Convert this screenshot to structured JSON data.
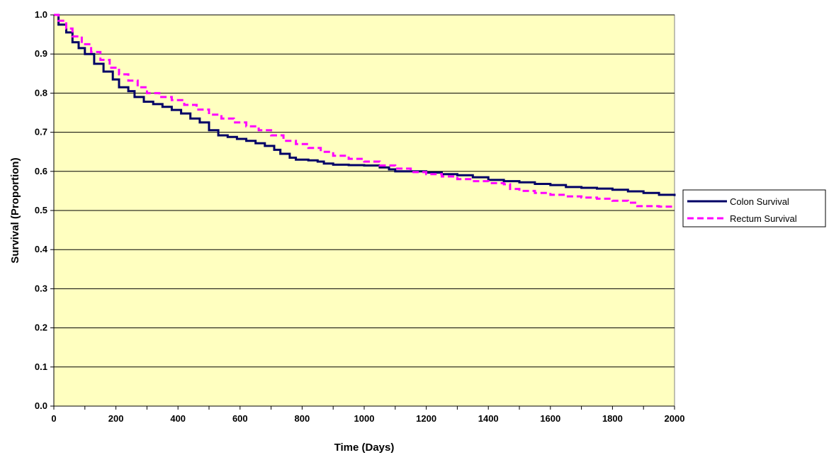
{
  "chart_data": {
    "type": "line",
    "title": "",
    "xlabel": "Time (Days)",
    "ylabel": "Survival (Proportion)",
    "xlim": [
      0,
      2000
    ],
    "ylim": [
      0,
      1
    ],
    "x_ticks": [
      0,
      200,
      400,
      600,
      800,
      1000,
      1200,
      1400,
      1600,
      1800,
      2000
    ],
    "y_ticks": [
      "0.0",
      "0.1",
      "0.2",
      "0.3",
      "0.4",
      "0.5",
      "0.6",
      "0.7",
      "0.8",
      "0.9",
      "1.0"
    ],
    "grid": "horizontal",
    "legend_position": "right",
    "plot_background": "#FFFFC0",
    "series": [
      {
        "name": "Colon Survival",
        "color": "#000066",
        "style": "solid",
        "x": [
          0,
          15,
          40,
          60,
          80,
          100,
          130,
          160,
          190,
          210,
          240,
          260,
          290,
          320,
          350,
          380,
          410,
          440,
          470,
          500,
          530,
          560,
          590,
          620,
          650,
          680,
          710,
          730,
          760,
          780,
          820,
          850,
          870,
          900,
          950,
          1000,
          1050,
          1080,
          1100,
          1200,
          1250,
          1300,
          1350,
          1400,
          1450,
          1500,
          1550,
          1600,
          1650,
          1700,
          1750,
          1800,
          1850,
          1900,
          1950,
          2000
        ],
        "y": [
          1.0,
          0.975,
          0.955,
          0.93,
          0.915,
          0.9,
          0.875,
          0.855,
          0.835,
          0.815,
          0.805,
          0.79,
          0.778,
          0.772,
          0.765,
          0.757,
          0.748,
          0.735,
          0.725,
          0.705,
          0.692,
          0.688,
          0.683,
          0.678,
          0.672,
          0.665,
          0.655,
          0.645,
          0.635,
          0.63,
          0.628,
          0.625,
          0.62,
          0.617,
          0.616,
          0.615,
          0.61,
          0.605,
          0.6,
          0.597,
          0.593,
          0.59,
          0.585,
          0.578,
          0.575,
          0.572,
          0.568,
          0.565,
          0.56,
          0.558,
          0.556,
          0.553,
          0.549,
          0.545,
          0.54,
          0.537
        ]
      },
      {
        "name": "Rectum Survival",
        "color": "#FF00FF",
        "style": "dashed",
        "x": [
          0,
          15,
          40,
          60,
          90,
          120,
          150,
          180,
          210,
          240,
          270,
          300,
          340,
          380,
          420,
          460,
          500,
          540,
          580,
          620,
          660,
          700,
          740,
          780,
          820,
          860,
          900,
          950,
          1000,
          1050,
          1100,
          1150,
          1200,
          1250,
          1300,
          1350,
          1400,
          1450,
          1470,
          1500,
          1550,
          1600,
          1650,
          1700,
          1750,
          1800,
          1850,
          1880,
          1950,
          2000
        ],
        "y": [
          1.0,
          0.985,
          0.965,
          0.945,
          0.925,
          0.905,
          0.885,
          0.865,
          0.848,
          0.832,
          0.815,
          0.8,
          0.79,
          0.782,
          0.77,
          0.758,
          0.745,
          0.735,
          0.725,
          0.715,
          0.705,
          0.692,
          0.678,
          0.67,
          0.66,
          0.65,
          0.64,
          0.632,
          0.625,
          0.615,
          0.607,
          0.598,
          0.593,
          0.587,
          0.58,
          0.575,
          0.57,
          0.567,
          0.555,
          0.55,
          0.545,
          0.54,
          0.536,
          0.533,
          0.53,
          0.525,
          0.52,
          0.511,
          0.51,
          0.51
        ]
      }
    ]
  }
}
